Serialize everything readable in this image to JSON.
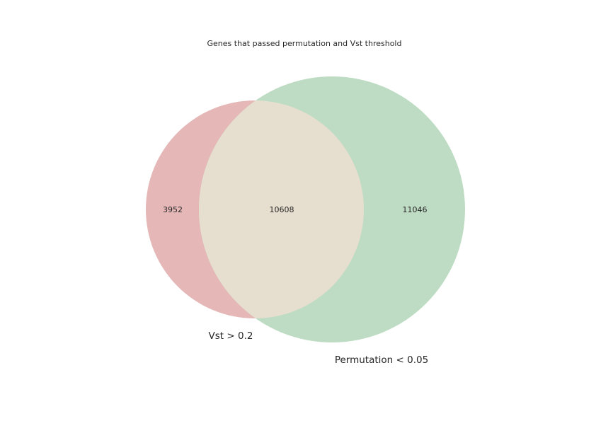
{
  "chart_data": {
    "type": "venn",
    "title": "Genes that passed permutation and Vst threshold",
    "sets": [
      {
        "name": "Vst > 0.2",
        "only_count": "3952",
        "color": "#e5b7b7"
      },
      {
        "name": "Permutation < 0.05",
        "only_count": "11046",
        "color": "#bedcc3"
      }
    ],
    "intersection": {
      "count": "10608",
      "color": "#e6dfcf"
    }
  }
}
